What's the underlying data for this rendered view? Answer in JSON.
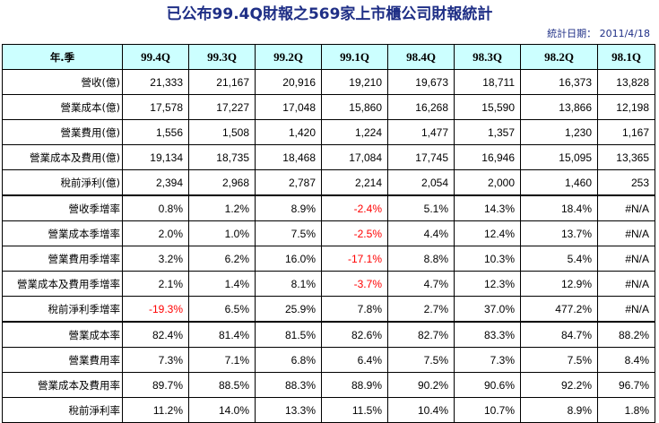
{
  "title": "已公布99.4Q財報之569家上市櫃公司財報統計",
  "stat_date": "統計日期： 2011/4/18",
  "corner_label": "年.季",
  "columns": [
    "99.4Q",
    "99.3Q",
    "99.2Q",
    "99.1Q",
    "98.4Q",
    "98.3Q",
    "98.2Q",
    "98.1Q"
  ],
  "rows": [
    {
      "label": "營收(億)",
      "values": [
        "21,333",
        "21,167",
        "20,916",
        "19,210",
        "19,673",
        "18,711",
        "16,373",
        "13,828"
      ],
      "neg": []
    },
    {
      "label": "營業成本(億)",
      "values": [
        "17,578",
        "17,227",
        "17,048",
        "15,860",
        "16,268",
        "15,590",
        "13,866",
        "12,198"
      ],
      "neg": []
    },
    {
      "label": "營業費用(億)",
      "values": [
        "1,556",
        "1,508",
        "1,420",
        "1,224",
        "1,477",
        "1,357",
        "1,230",
        "1,167"
      ],
      "neg": []
    },
    {
      "label": "營業成本及費用(億)",
      "values": [
        "19,134",
        "18,735",
        "18,468",
        "17,084",
        "17,745",
        "16,946",
        "15,095",
        "13,365"
      ],
      "neg": []
    },
    {
      "label": "稅前淨利(億)",
      "values": [
        "2,394",
        "2,968",
        "2,787",
        "2,214",
        "2,054",
        "2,000",
        "1,460",
        "253"
      ],
      "neg": []
    },
    {
      "label": "營收季增率",
      "values": [
        "0.8%",
        "1.2%",
        "8.9%",
        "-2.4%",
        "5.1%",
        "14.3%",
        "18.4%",
        "#N/A"
      ],
      "neg": [
        3
      ]
    },
    {
      "label": "營業成本季增率",
      "values": [
        "2.0%",
        "1.0%",
        "7.5%",
        "-2.5%",
        "4.4%",
        "12.4%",
        "13.7%",
        "#N/A"
      ],
      "neg": [
        3
      ]
    },
    {
      "label": "營業費用季增率",
      "values": [
        "3.2%",
        "6.2%",
        "16.0%",
        "-17.1%",
        "8.8%",
        "10.3%",
        "5.4%",
        "#N/A"
      ],
      "neg": [
        3
      ]
    },
    {
      "label": "營業成本及費用季增率",
      "values": [
        "2.1%",
        "1.4%",
        "8.1%",
        "-3.7%",
        "4.7%",
        "12.3%",
        "12.9%",
        "#N/A"
      ],
      "neg": [
        3
      ]
    },
    {
      "label": "稅前淨利季增率",
      "values": [
        "-19.3%",
        "6.5%",
        "25.9%",
        "7.8%",
        "2.7%",
        "37.0%",
        "477.2%",
        "#N/A"
      ],
      "neg": [
        0
      ]
    },
    {
      "label": "營業成本率",
      "values": [
        "82.4%",
        "81.4%",
        "81.5%",
        "82.6%",
        "82.7%",
        "83.3%",
        "84.7%",
        "88.2%"
      ],
      "neg": []
    },
    {
      "label": "營業費用率",
      "values": [
        "7.3%",
        "7.1%",
        "6.8%",
        "6.4%",
        "7.5%",
        "7.3%",
        "7.5%",
        "8.4%"
      ],
      "neg": []
    },
    {
      "label": "營業成本及費用率",
      "values": [
        "89.7%",
        "88.5%",
        "88.3%",
        "88.9%",
        "90.2%",
        "90.6%",
        "92.2%",
        "96.7%"
      ],
      "neg": []
    },
    {
      "label": "稅前淨利率",
      "values": [
        "11.2%",
        "14.0%",
        "13.3%",
        "11.5%",
        "10.4%",
        "10.7%",
        "8.9%",
        "1.8%"
      ],
      "neg": []
    }
  ],
  "colors": {
    "header_bg": "#ccffff",
    "title": "#1f2f86",
    "negative": "#ff0000"
  }
}
